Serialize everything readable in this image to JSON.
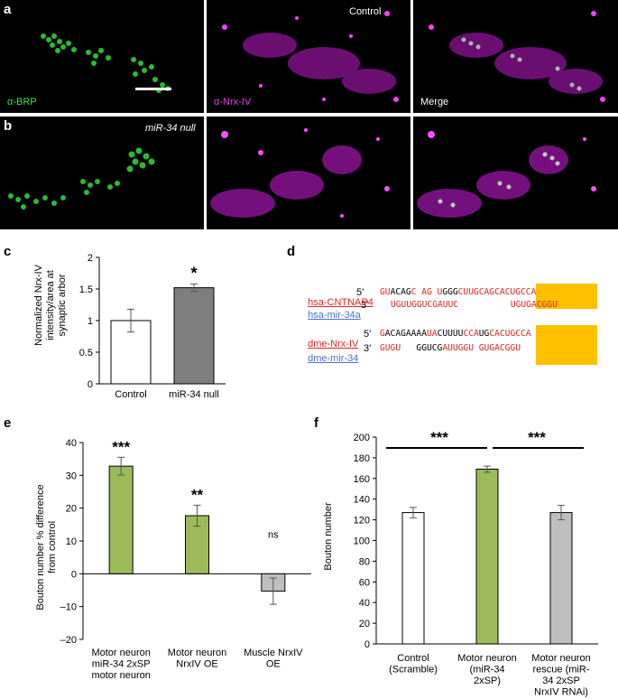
{
  "panels": {
    "a": "a",
    "b": "b",
    "c": "c",
    "d": "d",
    "e": "e",
    "f": "f"
  },
  "micro": {
    "control": "Control",
    "mir34_null": "miR-34 null",
    "brp": "α-BRP",
    "nrx": "α-Nrx-IV",
    "merge": "Merge"
  },
  "colors": {
    "green": "#37c83a",
    "magenta": "#d020d8",
    "bar_green": "#9bbb59",
    "bar_gray": "#bfbfbf",
    "bar_dark": "#7f7f7f",
    "highlight": "#ffc000",
    "seq_red": "#e8221f",
    "seq_blue": "#4a6fd4"
  },
  "seqs": {
    "hsa_target": "hsa-CNTNAP4",
    "hsa_mir": "hsa-mir-34a",
    "dme_target": "dme-Nrx-IV",
    "dme_mir": "dme-mir-34",
    "five": "5′",
    "three": "3′"
  },
  "chart_data": [
    {
      "type": "bar",
      "ylabel": "Normalized Nrx-IV intensity/area at synaptic arbor",
      "categories": [
        "Control",
        "miR-34 null"
      ],
      "values": [
        1.0,
        1.52
      ],
      "errors": [
        0.18,
        0.06
      ],
      "ylim": [
        0,
        2
      ],
      "yticks": [
        "0",
        "0.5",
        "1",
        "1.5",
        "2"
      ],
      "significance": [
        "",
        "*"
      ]
    },
    {
      "type": "bar",
      "ylabel": "Bouton number % difference from control",
      "categories": [
        [
          "Motor neuron",
          "miR-34 2xSP",
          "motor neuron"
        ],
        [
          "Motor neuron",
          "NrxIV OE"
        ],
        [
          "Muscle NrxIV",
          "OE"
        ]
      ],
      "values": [
        32.8,
        17.7,
        -5.3
      ],
      "errors": [
        2.7,
        3.2,
        4.0
      ],
      "ylim": [
        -20,
        40
      ],
      "yticks": [
        "–20",
        "–10",
        "0",
        "10",
        "20",
        "30",
        "40"
      ],
      "significance": [
        "***",
        "**",
        "ns"
      ]
    },
    {
      "type": "bar",
      "ylabel": "Bouton number",
      "categories": [
        [
          "Control",
          "(Scramble)"
        ],
        [
          "Motor neuron",
          "(miR-34",
          "2xSP)"
        ],
        [
          "Motor neuron",
          "rescue (miR-",
          "34 2xSP",
          "NrxIV RNAi)"
        ]
      ],
      "values": [
        127,
        169,
        127
      ],
      "errors": [
        5,
        3,
        7
      ],
      "ylim": [
        0,
        200
      ],
      "yticks": [
        "0",
        "20",
        "40",
        "60",
        "80",
        "100",
        "120",
        "140",
        "160",
        "180",
        "200"
      ],
      "significance": [
        "***",
        "***"
      ]
    }
  ]
}
